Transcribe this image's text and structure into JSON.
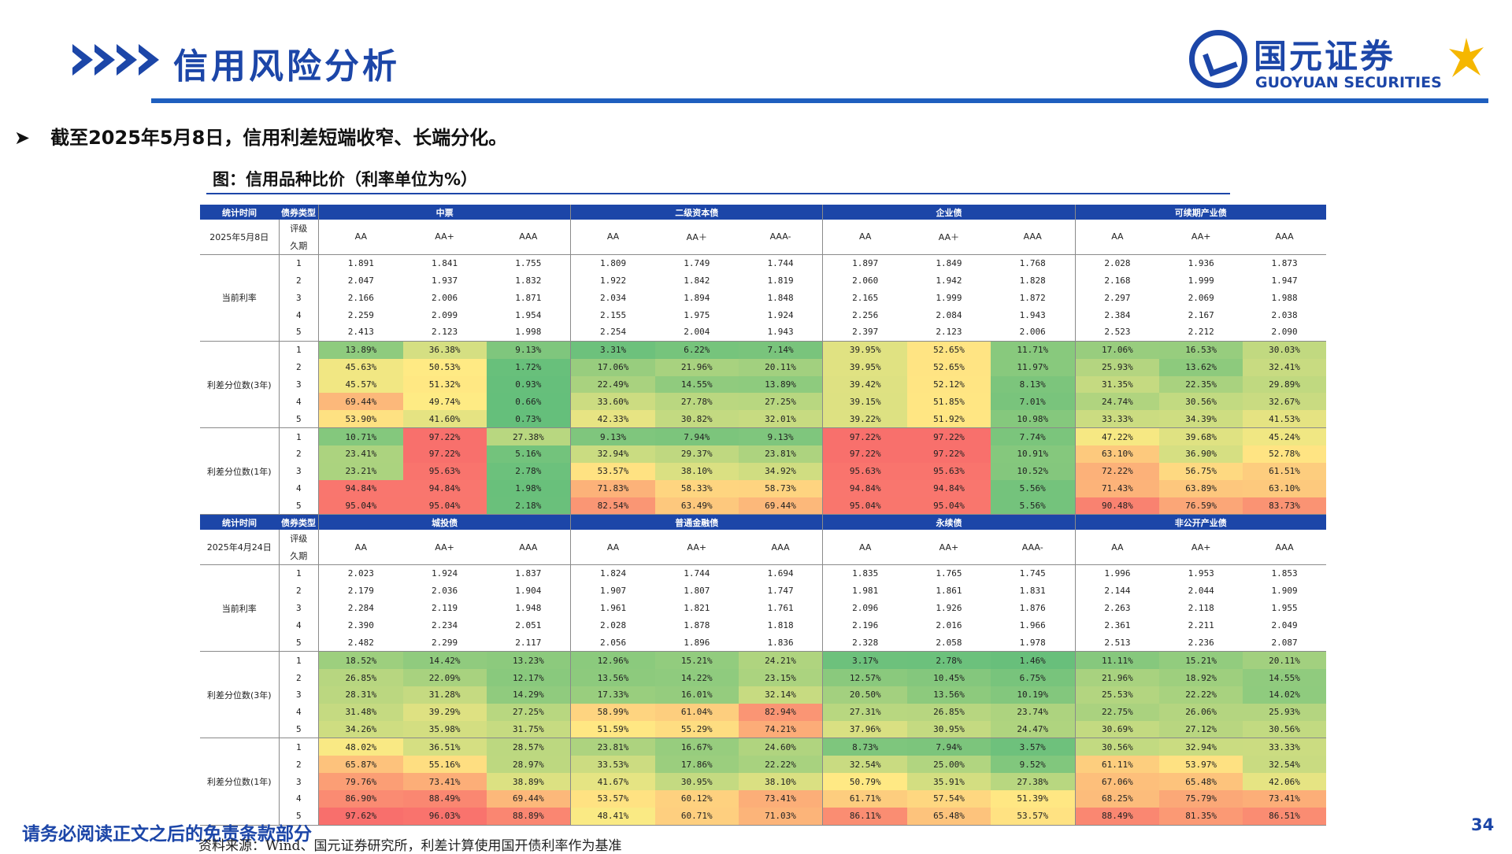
{
  "header": {
    "title": "信用风险分析"
  },
  "logo": {
    "cn": "国元证券",
    "en": "GUOYUAN SECURITIES"
  },
  "bullet": "截至2025年5月8日，信用利差短端收窄、长端分化。",
  "figure_title": "图：信用品种比价（利率单位为%）",
  "colors": {
    "brand_blue": "#1c46a8",
    "low_pct": "#63be7b",
    "mid_pct": "#ffeb84",
    "high_pct": "#f8696b"
  },
  "table": {
    "labels": {
      "stat_time": "统计时间",
      "bond_type": "债券类型",
      "rating": "评级",
      "tenor": "久期",
      "current_rate": "当前利率",
      "pct_3y": "利差分位数(3年)",
      "pct_1y": "利差分位数(1年)"
    },
    "sections": [
      {
        "date": "2025年5月8日",
        "groups": [
          {
            "name": "中票",
            "ratings": [
              "AA",
              "AA+",
              "AAA"
            ]
          },
          {
            "name": "二级资本债",
            "ratings": [
              "AA",
              "AA＋",
              "AAA-"
            ]
          },
          {
            "name": "企业债",
            "ratings": [
              "AA",
              "AA＋",
              "AAA"
            ]
          },
          {
            "name": "可续期产业债",
            "ratings": [
              "AA",
              "AA+",
              "AAA"
            ]
          }
        ],
        "blocks": [
          {
            "label": "当前利率",
            "colored": false,
            "rows": [
              [
                "1.891",
                "1.841",
                "1.755",
                "1.809",
                "1.749",
                "1.744",
                "1.897",
                "1.849",
                "1.768",
                "2.028",
                "1.936",
                "1.873"
              ],
              [
                "2.047",
                "1.937",
                "1.832",
                "1.922",
                "1.842",
                "1.819",
                "2.060",
                "1.942",
                "1.828",
                "2.168",
                "1.999",
                "1.947"
              ],
              [
                "2.166",
                "2.006",
                "1.871",
                "2.034",
                "1.894",
                "1.848",
                "2.165",
                "1.999",
                "1.872",
                "2.297",
                "2.069",
                "1.988"
              ],
              [
                "2.259",
                "2.099",
                "1.954",
                "2.155",
                "1.975",
                "1.924",
                "2.256",
                "2.084",
                "1.943",
                "2.384",
                "2.167",
                "2.038"
              ],
              [
                "2.413",
                "2.123",
                "1.998",
                "2.254",
                "2.004",
                "1.943",
                "2.397",
                "2.123",
                "2.006",
                "2.523",
                "2.212",
                "2.090"
              ]
            ]
          },
          {
            "label": "利差分位数(3年)",
            "colored": true,
            "rows": [
              [
                "13.89%",
                "36.38%",
                "9.13%",
                "3.31%",
                "6.22%",
                "7.14%",
                "39.95%",
                "52.65%",
                "11.71%",
                "17.06%",
                "16.53%",
                "30.03%"
              ],
              [
                "45.63%",
                "50.53%",
                "1.72%",
                "17.06%",
                "21.96%",
                "20.11%",
                "39.95%",
                "52.65%",
                "11.97%",
                "25.93%",
                "13.62%",
                "32.41%"
              ],
              [
                "45.57%",
                "51.32%",
                "0.93%",
                "22.49%",
                "14.55%",
                "13.89%",
                "39.42%",
                "52.12%",
                "8.13%",
                "31.35%",
                "22.35%",
                "29.89%"
              ],
              [
                "69.44%",
                "49.74%",
                "0.66%",
                "33.60%",
                "27.78%",
                "27.25%",
                "39.15%",
                "51.85%",
                "7.01%",
                "24.74%",
                "30.56%",
                "32.67%"
              ],
              [
                "53.90%",
                "41.60%",
                "0.73%",
                "42.33%",
                "30.82%",
                "32.01%",
                "39.22%",
                "51.92%",
                "10.98%",
                "33.33%",
                "34.39%",
                "41.53%"
              ]
            ]
          },
          {
            "label": "利差分位数(1年)",
            "colored": true,
            "rows": [
              [
                "10.71%",
                "97.22%",
                "27.38%",
                "9.13%",
                "7.94%",
                "9.13%",
                "97.22%",
                "97.22%",
                "7.74%",
                "47.22%",
                "39.68%",
                "45.24%"
              ],
              [
                "23.41%",
                "97.22%",
                "5.16%",
                "32.94%",
                "29.37%",
                "23.81%",
                "97.22%",
                "97.22%",
                "10.91%",
                "63.10%",
                "36.90%",
                "52.78%"
              ],
              [
                "23.21%",
                "95.63%",
                "2.78%",
                "53.57%",
                "38.10%",
                "34.92%",
                "95.63%",
                "95.63%",
                "10.52%",
                "72.22%",
                "56.75%",
                "61.51%"
              ],
              [
                "94.84%",
                "94.84%",
                "1.98%",
                "71.83%",
                "58.33%",
                "58.73%",
                "94.84%",
                "94.84%",
                "5.56%",
                "71.43%",
                "63.89%",
                "63.10%"
              ],
              [
                "95.04%",
                "95.04%",
                "2.18%",
                "82.54%",
                "63.49%",
                "69.44%",
                "95.04%",
                "95.04%",
                "5.56%",
                "90.48%",
                "76.59%",
                "83.73%"
              ]
            ]
          }
        ]
      },
      {
        "date": "2025年4月24日",
        "groups": [
          {
            "name": "城投债",
            "ratings": [
              "AA",
              "AA+",
              "AAA"
            ]
          },
          {
            "name": "普通金融债",
            "ratings": [
              "AA",
              "AA+",
              "AAA"
            ]
          },
          {
            "name": "永续债",
            "ratings": [
              "AA",
              "AA+",
              "AAA-"
            ]
          },
          {
            "name": "非公开产业债",
            "ratings": [
              "AA",
              "AA+",
              "AAA"
            ]
          }
        ],
        "blocks": [
          {
            "label": "当前利率",
            "colored": false,
            "rows": [
              [
                "2.023",
                "1.924",
                "1.837",
                "1.824",
                "1.744",
                "1.694",
                "1.835",
                "1.765",
                "1.745",
                "1.996",
                "1.953",
                "1.853"
              ],
              [
                "2.179",
                "2.036",
                "1.904",
                "1.907",
                "1.807",
                "1.747",
                "1.981",
                "1.861",
                "1.831",
                "2.144",
                "2.044",
                "1.909"
              ],
              [
                "2.284",
                "2.119",
                "1.948",
                "1.961",
                "1.821",
                "1.761",
                "2.096",
                "1.926",
                "1.876",
                "2.263",
                "2.118",
                "1.955"
              ],
              [
                "2.390",
                "2.234",
                "2.051",
                "2.028",
                "1.878",
                "1.818",
                "2.196",
                "2.016",
                "1.966",
                "2.361",
                "2.211",
                "2.049"
              ],
              [
                "2.482",
                "2.299",
                "2.117",
                "2.056",
                "1.896",
                "1.836",
                "2.328",
                "2.058",
                "1.978",
                "2.513",
                "2.236",
                "2.087"
              ]
            ]
          },
          {
            "label": "利差分位数(3年)",
            "colored": true,
            "rows": [
              [
                "18.52%",
                "14.42%",
                "13.23%",
                "12.96%",
                "15.21%",
                "24.21%",
                "3.17%",
                "2.78%",
                "1.46%",
                "11.11%",
                "15.21%",
                "20.11%"
              ],
              [
                "26.85%",
                "22.09%",
                "12.17%",
                "13.56%",
                "14.22%",
                "23.15%",
                "12.57%",
                "10.45%",
                "6.75%",
                "21.96%",
                "18.92%",
                "14.55%"
              ],
              [
                "28.31%",
                "31.28%",
                "14.29%",
                "17.33%",
                "16.01%",
                "32.14%",
                "20.50%",
                "13.56%",
                "10.19%",
                "25.53%",
                "22.22%",
                "14.02%"
              ],
              [
                "31.48%",
                "39.29%",
                "27.25%",
                "58.99%",
                "61.04%",
                "82.94%",
                "27.31%",
                "26.85%",
                "23.74%",
                "22.75%",
                "26.06%",
                "25.93%"
              ],
              [
                "34.26%",
                "35.98%",
                "31.75%",
                "51.59%",
                "55.29%",
                "74.21%",
                "37.96%",
                "30.95%",
                "24.47%",
                "30.69%",
                "27.12%",
                "30.56%"
              ]
            ]
          },
          {
            "label": "利差分位数(1年)",
            "colored": true,
            "rows": [
              [
                "48.02%",
                "36.51%",
                "28.57%",
                "23.81%",
                "16.67%",
                "24.60%",
                "8.73%",
                "7.94%",
                "3.57%",
                "30.56%",
                "32.94%",
                "33.33%"
              ],
              [
                "65.87%",
                "55.16%",
                "28.97%",
                "33.53%",
                "17.86%",
                "22.22%",
                "32.54%",
                "25.00%",
                "9.52%",
                "61.11%",
                "53.97%",
                "32.54%"
              ],
              [
                "79.76%",
                "73.41%",
                "38.89%",
                "41.67%",
                "30.95%",
                "38.10%",
                "50.79%",
                "35.91%",
                "27.38%",
                "67.06%",
                "65.48%",
                "42.06%"
              ],
              [
                "86.90%",
                "88.49%",
                "69.44%",
                "53.57%",
                "60.12%",
                "73.41%",
                "61.71%",
                "57.54%",
                "51.39%",
                "68.25%",
                "75.79%",
                "73.41%"
              ],
              [
                "97.62%",
                "96.03%",
                "88.89%",
                "48.41%",
                "60.71%",
                "71.03%",
                "86.11%",
                "65.48%",
                "53.57%",
                "88.49%",
                "81.35%",
                "86.51%"
              ]
            ]
          }
        ]
      }
    ]
  },
  "footer": {
    "disclaimer": "请务必阅读正文之后的免责条款部分",
    "source": "资料来源：Wind、国元证券研究所，利差计算使用国开债利率作为基准",
    "page_number": "34"
  }
}
